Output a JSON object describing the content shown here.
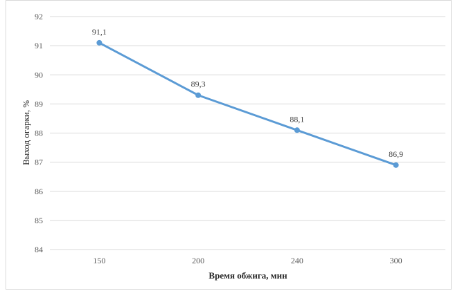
{
  "chart_data": {
    "type": "line",
    "categories": [
      "150",
      "200",
      "240",
      "300"
    ],
    "series": [
      {
        "values": [
          91.1,
          89.3,
          88.1,
          86.9
        ],
        "data_labels": [
          "91,1",
          "89,3",
          "88,1",
          "86,9"
        ],
        "color": "#5b9bd5"
      }
    ],
    "xlabel": "Время обжига, мин",
    "ylabel": "Выход огарки, %",
    "ylim": [
      84,
      92
    ],
    "y_ticks": [
      84,
      85,
      86,
      87,
      88,
      89,
      90,
      91,
      92
    ],
    "grid": true,
    "gridline_color": "#d9d9d9",
    "legend": "none"
  }
}
